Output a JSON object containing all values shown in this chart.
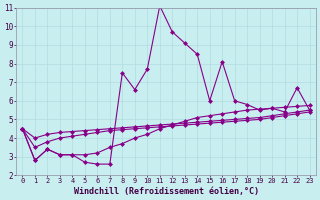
{
  "xlabel": "Windchill (Refroidissement éolien,°C)",
  "background_color": "#c8eef0",
  "grid_color": "#b0dce0",
  "line_color": "#880088",
  "x_data": [
    0,
    1,
    2,
    3,
    4,
    5,
    6,
    7,
    8,
    9,
    10,
    11,
    12,
    13,
    14,
    15,
    16,
    17,
    18,
    19,
    20,
    21,
    22,
    23
  ],
  "main_y": [
    4.5,
    2.8,
    3.4,
    3.1,
    3.1,
    2.7,
    2.6,
    2.6,
    7.5,
    6.6,
    7.7,
    11.1,
    9.7,
    9.1,
    8.5,
    6.0,
    8.1,
    6.0,
    5.8,
    5.5,
    5.6,
    5.4,
    6.7,
    5.5
  ],
  "line2_y": [
    4.5,
    2.8,
    3.4,
    3.1,
    3.1,
    3.1,
    3.2,
    3.5,
    3.7,
    4.0,
    4.2,
    4.5,
    4.7,
    4.9,
    5.1,
    5.2,
    5.3,
    5.4,
    5.5,
    5.55,
    5.6,
    5.65,
    5.7,
    5.75
  ],
  "line3_y": [
    4.5,
    3.5,
    3.8,
    4.0,
    4.1,
    4.2,
    4.3,
    4.4,
    4.45,
    4.5,
    4.55,
    4.6,
    4.65,
    4.7,
    4.75,
    4.8,
    4.85,
    4.9,
    4.95,
    5.0,
    5.1,
    5.2,
    5.3,
    5.4
  ],
  "line4_y": [
    4.5,
    4.0,
    4.2,
    4.3,
    4.35,
    4.4,
    4.45,
    4.5,
    4.55,
    4.6,
    4.65,
    4.7,
    4.75,
    4.8,
    4.85,
    4.9,
    4.95,
    5.0,
    5.05,
    5.1,
    5.2,
    5.3,
    5.4,
    5.5
  ],
  "ylim": [
    2,
    11
  ],
  "xlim": [
    -0.5,
    23.5
  ],
  "yticks": [
    2,
    3,
    4,
    5,
    6,
    7,
    8,
    9,
    10,
    11
  ],
  "xticks": [
    0,
    1,
    2,
    3,
    4,
    5,
    6,
    7,
    8,
    9,
    10,
    11,
    12,
    13,
    14,
    15,
    16,
    17,
    18,
    19,
    20,
    21,
    22,
    23
  ],
  "tick_fontsize": 5.0,
  "xlabel_fontsize": 6.0
}
